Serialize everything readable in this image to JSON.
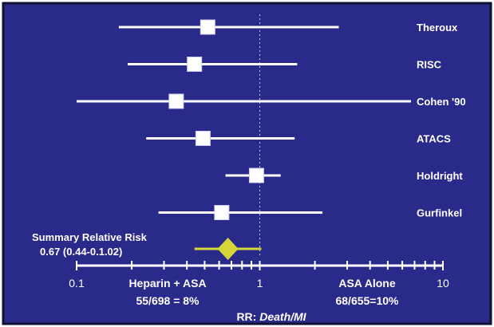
{
  "colors": {
    "background": "#2a2a8a",
    "border": "#111133",
    "line": "#ffffff",
    "summary": "#d6d63a",
    "reference": "#c8c8ee"
  },
  "chart_data": {
    "type": "forest",
    "x_scale": "log",
    "xlim": [
      0.1,
      10
    ],
    "x_tick_labels": [
      "0.1",
      "1",
      "10"
    ],
    "reference_value": 1,
    "studies": [
      {
        "name": "Theroux",
        "estimate": 0.52,
        "lower": 0.17,
        "upper": 2.7
      },
      {
        "name": "RISC",
        "estimate": 0.44,
        "lower": 0.19,
        "upper": 1.6
      },
      {
        "name": "Cohen '90",
        "estimate": 0.35,
        "lower": 0.1,
        "upper": 10
      },
      {
        "name": "ATACS",
        "estimate": 0.49,
        "lower": 0.24,
        "upper": 1.55
      },
      {
        "name": "Holdright",
        "estimate": 0.96,
        "lower": 0.65,
        "upper": 1.3
      },
      {
        "name": "Gurfinkel",
        "estimate": 0.62,
        "lower": 0.28,
        "upper": 2.2
      }
    ],
    "summary": {
      "label_line1": "Summary Relative Risk",
      "label_line2": "0.67 (0.44-0.1.02)",
      "estimate": 0.67,
      "lower": 0.44,
      "upper": 1.02
    },
    "left_label": {
      "line1": "Heparin + ASA",
      "line2": "55/698 = 8%"
    },
    "right_label": {
      "line1": "ASA Alone",
      "line2": "68/655=10%"
    },
    "xlabel_prefix": "RR: ",
    "xlabel_italic": "Death/MI"
  }
}
